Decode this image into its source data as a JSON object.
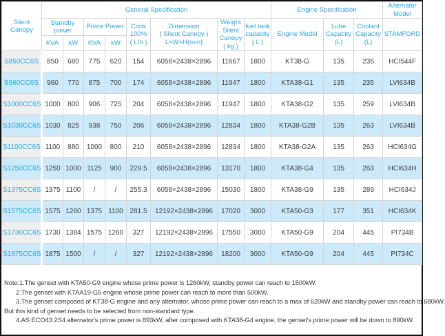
{
  "colors": {
    "accent_cyan": "#2ba6e0",
    "row_alt_blue": "#cdeafb",
    "model_col_gray": "#efefef",
    "cell_border": "#d4d4d4",
    "frame_border": "#111111",
    "text": "#404040"
  },
  "table": {
    "header": {
      "silent_canopy": "Silent Canopy",
      "general_spec": "General Specification",
      "engine_spec": "Engine Specification",
      "alternator_model": "Alternator\nModel",
      "standby_power": "Standby\npower",
      "prime_power": "Prime Power",
      "kva": "KVA",
      "kw": "kW",
      "cons": "Cons\n100%\n( L/h )",
      "dimension": "Dimension\n( Silent Canopy )\nL×W×H(mm)",
      "weight": "Weight\nSilent\nCanopy\n( kg )",
      "fuel": "fuel tank\ncapacity\n( L )",
      "engine_model": "Engine Model",
      "lube": "Lube\nCapacity\n(L)",
      "coolant": "Coolant\nCapacity\n(L)",
      "stamford": "STAMFORD"
    },
    "rows": [
      {
        "model": "S850CC6S",
        "standby_kva": "850",
        "standby_kw": "680",
        "prime_kva": "775",
        "prime_kw": "620",
        "cons": "154",
        "dimension": "6058×2438×2896",
        "weight": "11667",
        "fuel": "1800",
        "engine": "KT38-G",
        "lube": "135",
        "coolant": "235",
        "alternator": "HCI544F"
      },
      {
        "model": "S960CC6S",
        "standby_kva": "960",
        "standby_kw": "770",
        "prime_kva": "875",
        "prime_kw": "700",
        "cons": "174",
        "dimension": "6058×2438×2896",
        "weight": "11947",
        "fuel": "1800",
        "engine": "KTA38-G1",
        "lube": "135",
        "coolant": "235",
        "alternator": "LVI634B"
      },
      {
        "model": "S1000CC6S",
        "standby_kva": "1000",
        "standby_kw": "800",
        "prime_kva": "906",
        "prime_kw": "725",
        "cons": "204",
        "dimension": "6058×2438×2896",
        "weight": "11947",
        "fuel": "1800",
        "engine": "KTA38-G2",
        "lube": "135",
        "coolant": "259",
        "alternator": "LVI634B"
      },
      {
        "model": "S1030CC6S",
        "standby_kva": "1030",
        "standby_kw": "825",
        "prime_kva": "938",
        "prime_kw": "750",
        "cons": "206",
        "dimension": "6058×2438×2896",
        "weight": "12834",
        "fuel": "1800",
        "engine": "KTA38-G2B",
        "lube": "135",
        "coolant": "263",
        "alternator": "LVI634B"
      },
      {
        "model": "S1100CC6S",
        "standby_kva": "1100",
        "standby_kw": "880",
        "prime_kva": "1000",
        "prime_kw": "800",
        "cons": "210",
        "dimension": "6058×2438×2896",
        "weight": "12834",
        "fuel": "1800",
        "engine": "KTA38-G2A",
        "lube": "135",
        "coolant": "263",
        "alternator": "HCI634G"
      },
      {
        "model": "S1250CC6S",
        "standby_kva": "1250",
        "standby_kw": "1000",
        "prime_kva": "1125",
        "prime_kw": "900",
        "cons": "229.5",
        "dimension": "6058×2438×2896",
        "weight": "13170",
        "fuel": "1800",
        "engine": "KTA38-G4",
        "lube": "135",
        "coolant": "263",
        "alternator": "HCI634H"
      },
      {
        "model": "S1375CC6S",
        "standby_kva": "1375",
        "standby_kw": "1100",
        "prime_kva": "/",
        "prime_kw": "/",
        "cons": "255.3",
        "dimension": "6058×2438×2896",
        "weight": "15030",
        "fuel": "1800",
        "engine": "KTA38-G9",
        "lube": "135",
        "coolant": "289",
        "alternator": "HCI634J"
      },
      {
        "model": "S1575CC6S",
        "standby_kva": "1575",
        "standby_kw": "1260",
        "prime_kva": "1375",
        "prime_kw": "1100",
        "cons": "281.5",
        "dimension": "12192×2438×2896",
        "weight": "17020",
        "fuel": "3000",
        "engine": "KTA50-G3",
        "lube": "177",
        "coolant": "351",
        "alternator": "HCI634K"
      },
      {
        "model": "S1730CC6S",
        "standby_kva": "1730",
        "standby_kw": "1384",
        "prime_kva": "1575",
        "prime_kw": "1260",
        "cons": "327",
        "dimension": "12192×2438×2896",
        "weight": "17550",
        "fuel": "3000",
        "engine": "KTA50-G9",
        "lube": "204",
        "coolant": "445",
        "alternator": "PI734B"
      },
      {
        "model": "S1875CC6S",
        "standby_kva": "1875",
        "standby_kw": "1500",
        "prime_kva": "/",
        "prime_kw": "/",
        "cons": "327",
        "dimension": "12192×2438×2896",
        "weight": "18200",
        "fuel": "3000",
        "engine": "KTA50-G9",
        "lube": "204",
        "coolant": "445",
        "alternator": "PI734C"
      }
    ]
  },
  "notes": {
    "lines": [
      "Note:1.The genset with KTA50-G9 engine whose prime power is 1260kW, standby power can reach to 1500kW.",
      "2.The genset with KTAA19-G5 engine whose prime power can reach to more than 500kW.",
      "3.The genset composed of KT38-G engine and any alternator, whose prime power can reach to a max of 620kW and standby power can reach to 680kW.",
      "But this kind of genset needs to be selected from non-standard type.",
      "4.AS ECO43 2S4 alternator's prime power is 893kW, after composed with KTA38-G4 engine, the genset's prime power will be down to 890kW."
    ]
  }
}
